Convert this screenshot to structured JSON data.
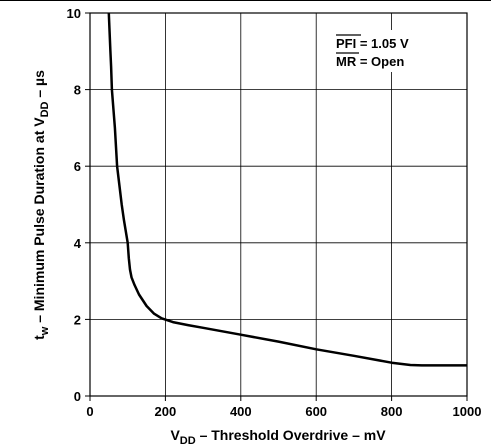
{
  "chart_data": {
    "type": "line",
    "title": "",
    "xlabel": {
      "main": "V",
      "sub": "DD",
      "rest": " – Threshold Overdrive – mV"
    },
    "ylabel": {
      "pre": "t",
      "sub1": "w",
      "mid": " – Minimum Pulse Duration at V",
      "sub2": "DD",
      "rest": " – µs"
    },
    "xlim": [
      0,
      1000
    ],
    "ylim": [
      0,
      10
    ],
    "xticks": [
      "0",
      "200",
      "400",
      "600",
      "800",
      "1000"
    ],
    "yticks": [
      "0",
      "2",
      "4",
      "6",
      "8",
      "10"
    ],
    "grid": true,
    "annotations": [
      {
        "overbar": "PFI",
        "rest": " = 1.05 V"
      },
      {
        "overbar": "MR",
        "rest": " = Open"
      }
    ],
    "series": [
      {
        "x": [
          50,
          52,
          54,
          56,
          58,
          62,
          66,
          72,
          78,
          84,
          90,
          95,
          100,
          103,
          106,
          110,
          118,
          130,
          150,
          170,
          190,
          220,
          260,
          300,
          400,
          500,
          600,
          700,
          800,
          850,
          880,
          900,
          950,
          1000
        ],
        "y": [
          10,
          9.5,
          9.0,
          8.6,
          8.0,
          7.5,
          7.0,
          6.0,
          5.5,
          5.0,
          4.6,
          4.3,
          4.0,
          3.6,
          3.3,
          3.1,
          2.9,
          2.65,
          2.35,
          2.15,
          2.03,
          1.93,
          1.85,
          1.78,
          1.6,
          1.42,
          1.22,
          1.05,
          0.87,
          0.81,
          0.8,
          0.8,
          0.8,
          0.8
        ]
      }
    ]
  }
}
